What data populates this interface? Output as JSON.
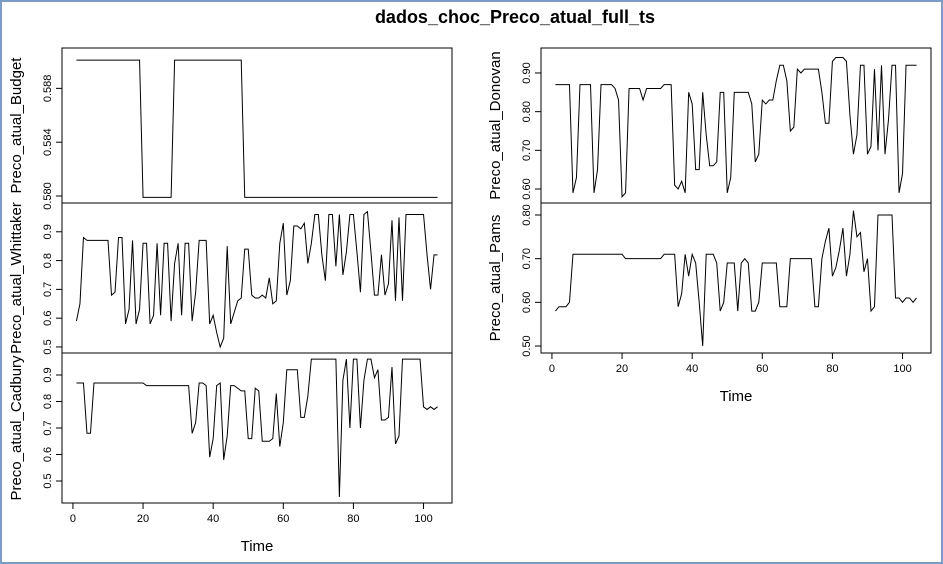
{
  "title": "dados_choc_Preco_atual_full_ts",
  "chart_data": [
    {
      "type": "line",
      "y_label": "Preco_atual_Budget",
      "xlim": [
        -3.12,
        108.12
      ],
      "ylim": [
        0.57948,
        0.591
      ],
      "yticks": [
        {
          "value": 0.58,
          "label": "0.580"
        },
        0.584,
        0.588
      ],
      "x": [
        1,
        2,
        3,
        4,
        5,
        6,
        7,
        8,
        9,
        10,
        11,
        12,
        13,
        14,
        15,
        16,
        17,
        18,
        19,
        20,
        21,
        22,
        23,
        24,
        25,
        26,
        27,
        28,
        29,
        30,
        31,
        32,
        33,
        34,
        35,
        36,
        37,
        38,
        39,
        40,
        41,
        42,
        43,
        44,
        45,
        46,
        47,
        48,
        49,
        50,
        51,
        52,
        53,
        54,
        55,
        56,
        57,
        58,
        59,
        60,
        61,
        62,
        63,
        64,
        65,
        66,
        67,
        68,
        69,
        70,
        71,
        72,
        73,
        74,
        75,
        76,
        77,
        78,
        79,
        80,
        81,
        82,
        83,
        84,
        85,
        86,
        87,
        88,
        89,
        90,
        91,
        92,
        93,
        94,
        95,
        96,
        97,
        98,
        99,
        100,
        101,
        102,
        103,
        104
      ],
      "values": [
        0.5901,
        0.5901,
        0.5901,
        0.5901,
        0.5901,
        0.5901,
        0.5901,
        0.5901,
        0.5901,
        0.5901,
        0.5901,
        0.5901,
        0.5901,
        0.5901,
        0.5901,
        0.5901,
        0.5901,
        0.5901,
        0.5901,
        0.5799,
        0.5799,
        0.5799,
        0.5799,
        0.5799,
        0.5799,
        0.5799,
        0.5799,
        0.5799,
        0.5901,
        0.5901,
        0.5901,
        0.5901,
        0.5901,
        0.5901,
        0.5901,
        0.5901,
        0.5901,
        0.5901,
        0.5901,
        0.5901,
        0.5901,
        0.5901,
        0.5901,
        0.5901,
        0.5901,
        0.5901,
        0.5901,
        0.5901,
        0.5799,
        0.5799,
        0.5799,
        0.5799,
        0.5799,
        0.5799,
        0.5799,
        0.5799,
        0.5799,
        0.5799,
        0.5799,
        0.5799,
        0.5799,
        0.5799,
        0.5799,
        0.5799,
        0.5799,
        0.5799,
        0.5799,
        0.5799,
        0.5799,
        0.5799,
        0.5799,
        0.5799,
        0.5799,
        0.5799,
        0.5799,
        0.5799,
        0.5799,
        0.5799,
        0.5799,
        0.5799,
        0.5799,
        0.5799,
        0.5799,
        0.5799,
        0.5799,
        0.5799,
        0.5799,
        0.5799,
        0.5799,
        0.5799,
        0.5799,
        0.5799,
        0.5799,
        0.5799,
        0.5799,
        0.5799,
        0.5799,
        0.5799,
        0.5799,
        0.5799,
        0.5799,
        0.5799,
        0.5799,
        0.5799
      ]
    },
    {
      "type": "line",
      "y_label": "Preco_atual_Whittaker",
      "xlim": [
        -3.12,
        108.12
      ],
      "ylim": [
        0.479,
        1.0
      ],
      "yticks": [
        0.5,
        0.6,
        0.7,
        0.8,
        0.9
      ],
      "x": [
        1,
        2,
        3,
        4,
        5,
        6,
        7,
        8,
        9,
        10,
        11,
        12,
        13,
        14,
        15,
        16,
        17,
        18,
        19,
        20,
        21,
        22,
        23,
        24,
        25,
        26,
        27,
        28,
        29,
        30,
        31,
        32,
        33,
        34,
        35,
        36,
        37,
        38,
        39,
        40,
        41,
        42,
        43,
        44,
        45,
        46,
        47,
        48,
        49,
        50,
        51,
        52,
        53,
        54,
        55,
        56,
        57,
        58,
        59,
        60,
        61,
        62,
        63,
        64,
        65,
        66,
        67,
        68,
        69,
        70,
        71,
        72,
        73,
        74,
        75,
        76,
        77,
        78,
        79,
        80,
        81,
        82,
        83,
        84,
        85,
        86,
        87,
        88,
        89,
        90,
        91,
        92,
        93,
        94,
        95,
        96,
        97,
        98,
        99,
        100,
        101,
        102,
        103,
        104
      ],
      "values": [
        0.59,
        0.65,
        0.88,
        0.87,
        0.87,
        0.87,
        0.87,
        0.87,
        0.87,
        0.87,
        0.68,
        0.69,
        0.88,
        0.88,
        0.58,
        0.63,
        0.87,
        0.58,
        0.63,
        0.86,
        0.86,
        0.58,
        0.61,
        0.86,
        0.61,
        0.86,
        0.86,
        0.59,
        0.79,
        0.86,
        0.61,
        0.86,
        0.86,
        0.59,
        0.69,
        0.87,
        0.87,
        0.87,
        0.58,
        0.61,
        0.55,
        0.5,
        0.53,
        0.85,
        0.58,
        0.62,
        0.66,
        0.67,
        0.84,
        0.84,
        0.68,
        0.67,
        0.67,
        0.68,
        0.67,
        0.74,
        0.65,
        0.66,
        0.86,
        0.93,
        0.68,
        0.73,
        0.92,
        0.92,
        0.91,
        0.93,
        0.79,
        0.86,
        0.96,
        0.96,
        0.82,
        0.73,
        0.96,
        0.96,
        0.78,
        0.96,
        0.75,
        0.83,
        0.96,
        0.96,
        0.83,
        0.69,
        0.96,
        0.97,
        0.83,
        0.68,
        0.68,
        0.82,
        0.68,
        0.72,
        0.94,
        0.66,
        0.95,
        0.66,
        0.96,
        0.96,
        0.96,
        0.96,
        0.96,
        0.96,
        0.82,
        0.7,
        0.82,
        0.82
      ]
    },
    {
      "type": "line",
      "y_label": "Preco_atual_Cadbury",
      "x_label": "Time",
      "xlim": [
        -3.12,
        108.12
      ],
      "ylim": [
        0.417,
        0.983
      ],
      "yticks": [
        0.5,
        0.6,
        0.7,
        0.8,
        0.9
      ],
      "xticks": [
        0,
        20,
        40,
        60,
        80,
        100
      ],
      "x": [
        1,
        2,
        3,
        4,
        5,
        6,
        7,
        8,
        9,
        10,
        11,
        12,
        13,
        14,
        15,
        16,
        17,
        18,
        19,
        20,
        21,
        22,
        23,
        24,
        25,
        26,
        27,
        28,
        29,
        30,
        31,
        32,
        33,
        34,
        35,
        36,
        37,
        38,
        39,
        40,
        41,
        42,
        43,
        44,
        45,
        46,
        47,
        48,
        49,
        50,
        51,
        52,
        53,
        54,
        55,
        56,
        57,
        58,
        59,
        60,
        61,
        62,
        63,
        64,
        65,
        66,
        67,
        68,
        69,
        70,
        71,
        72,
        73,
        74,
        75,
        76,
        77,
        78,
        79,
        80,
        81,
        82,
        83,
        84,
        85,
        86,
        87,
        88,
        89,
        90,
        91,
        92,
        93,
        94,
        95,
        96,
        97,
        98,
        99,
        100,
        101,
        102,
        103,
        104
      ],
      "values": [
        0.87,
        0.87,
        0.87,
        0.68,
        0.68,
        0.87,
        0.87,
        0.87,
        0.87,
        0.87,
        0.87,
        0.87,
        0.87,
        0.87,
        0.87,
        0.87,
        0.87,
        0.87,
        0.87,
        0.87,
        0.86,
        0.86,
        0.86,
        0.86,
        0.86,
        0.86,
        0.86,
        0.86,
        0.86,
        0.86,
        0.86,
        0.86,
        0.86,
        0.68,
        0.72,
        0.87,
        0.87,
        0.86,
        0.59,
        0.66,
        0.86,
        0.87,
        0.58,
        0.67,
        0.86,
        0.86,
        0.85,
        0.84,
        0.84,
        0.66,
        0.66,
        0.85,
        0.84,
        0.65,
        0.65,
        0.65,
        0.66,
        0.83,
        0.63,
        0.72,
        0.92,
        0.92,
        0.92,
        0.92,
        0.74,
        0.74,
        0.82,
        0.96,
        0.96,
        0.96,
        0.96,
        0.96,
        0.96,
        0.96,
        0.96,
        0.44,
        0.88,
        0.96,
        0.7,
        0.96,
        0.96,
        0.7,
        0.88,
        0.96,
        0.96,
        0.89,
        0.92,
        0.73,
        0.73,
        0.74,
        0.93,
        0.64,
        0.67,
        0.96,
        0.96,
        0.96,
        0.96,
        0.96,
        0.96,
        0.78,
        0.77,
        0.78,
        0.77,
        0.78
      ]
    },
    {
      "type": "line",
      "y_label": "Preco_atual_Donovan",
      "xlim": [
        -3.12,
        108.12
      ],
      "ylim": [
        0.5638,
        0.9646
      ],
      "yticks": [
        {
          "value": 0.6,
          "label": "0.60"
        },
        {
          "value": 0.7,
          "label": "0.70"
        },
        {
          "value": 0.8,
          "label": "0.80"
        },
        {
          "value": 0.9,
          "label": "0.90"
        }
      ],
      "x": [
        1,
        2,
        3,
        4,
        5,
        6,
        7,
        8,
        9,
        10,
        11,
        12,
        13,
        14,
        15,
        16,
        17,
        18,
        19,
        20,
        21,
        22,
        23,
        24,
        25,
        26,
        27,
        28,
        29,
        30,
        31,
        32,
        33,
        34,
        35,
        36,
        37,
        38,
        39,
        40,
        41,
        42,
        43,
        44,
        45,
        46,
        47,
        48,
        49,
        50,
        51,
        52,
        53,
        54,
        55,
        56,
        57,
        58,
        59,
        60,
        61,
        62,
        63,
        64,
        65,
        66,
        67,
        68,
        69,
        70,
        71,
        72,
        73,
        74,
        75,
        76,
        77,
        78,
        79,
        80,
        81,
        82,
        83,
        84,
        85,
        86,
        87,
        88,
        89,
        90,
        91,
        92,
        93,
        94,
        95,
        96,
        97,
        98,
        99,
        100,
        101,
        102,
        103,
        104
      ],
      "values": [
        0.87,
        0.87,
        0.87,
        0.87,
        0.87,
        0.59,
        0.63,
        0.87,
        0.87,
        0.87,
        0.87,
        0.59,
        0.65,
        0.87,
        0.87,
        0.87,
        0.87,
        0.86,
        0.83,
        0.58,
        0.59,
        0.86,
        0.86,
        0.86,
        0.86,
        0.83,
        0.86,
        0.86,
        0.86,
        0.86,
        0.86,
        0.87,
        0.87,
        0.87,
        0.61,
        0.6,
        0.62,
        0.59,
        0.85,
        0.82,
        0.65,
        0.65,
        0.85,
        0.74,
        0.66,
        0.66,
        0.67,
        0.85,
        0.85,
        0.59,
        0.63,
        0.85,
        0.85,
        0.85,
        0.85,
        0.85,
        0.82,
        0.67,
        0.69,
        0.83,
        0.82,
        0.83,
        0.83,
        0.88,
        0.92,
        0.92,
        0.88,
        0.75,
        0.76,
        0.91,
        0.9,
        0.91,
        0.91,
        0.91,
        0.91,
        0.91,
        0.85,
        0.77,
        0.77,
        0.93,
        0.94,
        0.94,
        0.94,
        0.93,
        0.79,
        0.69,
        0.74,
        0.92,
        0.92,
        0.69,
        0.71,
        0.91,
        0.7,
        0.92,
        0.69,
        0.78,
        0.92,
        0.92,
        0.59,
        0.64,
        0.92,
        0.92,
        0.92,
        0.92
      ]
    },
    {
      "type": "line",
      "y_label": "Preco_atual_Pams",
      "x_label": "Time",
      "xlim": [
        -3.12,
        108.12
      ],
      "ylim": [
        0.484,
        0.8275
      ],
      "yticks": [
        {
          "value": 0.5,
          "label": "0.50"
        },
        {
          "value": 0.6,
          "label": "0.60"
        },
        {
          "value": 0.7,
          "label": "0.70"
        },
        {
          "value": 0.8,
          "label": "0.80"
        }
      ],
      "xticks": [
        0,
        20,
        40,
        60,
        80,
        100
      ],
      "x": [
        1,
        2,
        3,
        4,
        5,
        6,
        7,
        8,
        9,
        10,
        11,
        12,
        13,
        14,
        15,
        16,
        17,
        18,
        19,
        20,
        21,
        22,
        23,
        24,
        25,
        26,
        27,
        28,
        29,
        30,
        31,
        32,
        33,
        34,
        35,
        36,
        37,
        38,
        39,
        40,
        41,
        42,
        43,
        44,
        45,
        46,
        47,
        48,
        49,
        50,
        51,
        52,
        53,
        54,
        55,
        56,
        57,
        58,
        59,
        60,
        61,
        62,
        63,
        64,
        65,
        66,
        67,
        68,
        69,
        70,
        71,
        72,
        73,
        74,
        75,
        76,
        77,
        78,
        79,
        80,
        81,
        82,
        83,
        84,
        85,
        86,
        87,
        88,
        89,
        90,
        91,
        92,
        93,
        94,
        95,
        96,
        97,
        98,
        99,
        100,
        101,
        102,
        103,
        104
      ],
      "values": [
        0.58,
        0.59,
        0.59,
        0.59,
        0.6,
        0.71,
        0.71,
        0.71,
        0.71,
        0.71,
        0.71,
        0.71,
        0.71,
        0.71,
        0.71,
        0.71,
        0.71,
        0.71,
        0.71,
        0.71,
        0.7,
        0.7,
        0.7,
        0.7,
        0.7,
        0.7,
        0.7,
        0.7,
        0.7,
        0.7,
        0.7,
        0.71,
        0.71,
        0.71,
        0.71,
        0.59,
        0.62,
        0.71,
        0.66,
        0.71,
        0.69,
        0.6,
        0.5,
        0.71,
        0.71,
        0.71,
        0.69,
        0.58,
        0.6,
        0.69,
        0.69,
        0.69,
        0.58,
        0.69,
        0.7,
        0.69,
        0.58,
        0.58,
        0.6,
        0.69,
        0.69,
        0.69,
        0.69,
        0.69,
        0.59,
        0.59,
        0.59,
        0.7,
        0.7,
        0.7,
        0.7,
        0.7,
        0.7,
        0.7,
        0.59,
        0.59,
        0.7,
        0.74,
        0.77,
        0.66,
        0.68,
        0.72,
        0.77,
        0.66,
        0.71,
        0.81,
        0.75,
        0.76,
        0.67,
        0.7,
        0.58,
        0.59,
        0.8,
        0.8,
        0.8,
        0.8,
        0.8,
        0.61,
        0.61,
        0.6,
        0.61,
        0.61,
        0.6,
        0.61
      ]
    }
  ]
}
